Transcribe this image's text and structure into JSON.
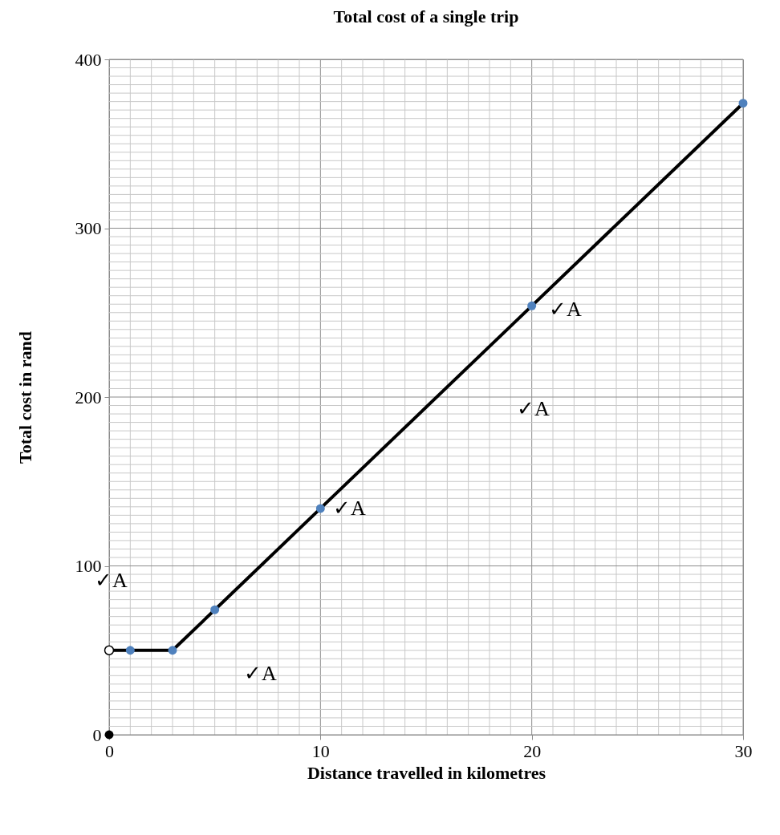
{
  "chart_data": {
    "type": "line",
    "title": "Total cost of  a single trip",
    "xlabel": "Distance travelled in kilometres",
    "ylabel": "Total cost in rand",
    "xlim": [
      0,
      30
    ],
    "ylim": [
      0,
      400
    ],
    "xticks": [
      0,
      {
        "value": 1,
        "label": null
      },
      {
        "value": 2,
        "label": null
      },
      {
        "value": 3,
        "label": null
      },
      {
        "value": 4,
        "label": null
      },
      {
        "value": 5,
        "label": null
      },
      {
        "value": 6,
        "label": null
      },
      {
        "value": 7,
        "label": null
      },
      {
        "value": 8,
        "label": null
      },
      {
        "value": 9,
        "label": null
      },
      10,
      {
        "value": 11,
        "label": null
      },
      {
        "value": 12,
        "label": null
      },
      {
        "value": 13,
        "label": null
      },
      {
        "value": 14,
        "label": null
      },
      {
        "value": 15,
        "label": null
      },
      {
        "value": 16,
        "label": null
      },
      {
        "value": 17,
        "label": null
      },
      {
        "value": 18,
        "label": null
      },
      {
        "value": 19,
        "label": null
      },
      20,
      {
        "value": 21,
        "label": null
      },
      {
        "value": 22,
        "label": null
      },
      {
        "value": 23,
        "label": null
      },
      {
        "value": 24,
        "label": null
      },
      {
        "value": 25,
        "label": null
      },
      {
        "value": 26,
        "label": null
      },
      {
        "value": 27,
        "label": null
      },
      {
        "value": 28,
        "label": null
      },
      {
        "value": 29,
        "label": null
      },
      30
    ],
    "yticks": [
      0,
      {
        "value": 5,
        "label": null
      },
      {
        "value": 10,
        "label": null
      },
      {
        "value": 15,
        "label": null
      },
      {
        "value": 20,
        "label": null
      },
      {
        "value": 25,
        "label": null
      },
      {
        "value": 30,
        "label": null
      },
      {
        "value": 35,
        "label": null
      },
      {
        "value": 40,
        "label": null
      },
      {
        "value": 45,
        "label": null
      },
      {
        "value": 50,
        "label": null
      },
      {
        "value": 55,
        "label": null
      },
      {
        "value": 60,
        "label": null
      },
      {
        "value": 65,
        "label": null
      },
      {
        "value": 70,
        "label": null
      },
      {
        "value": 75,
        "label": null
      },
      {
        "value": 80,
        "label": null
      },
      {
        "value": 85,
        "label": null
      },
      {
        "value": 90,
        "label": null
      },
      {
        "value": 95,
        "label": null
      },
      100,
      {
        "value": 105,
        "label": null
      },
      {
        "value": 110,
        "label": null
      },
      {
        "value": 115,
        "label": null
      },
      {
        "value": 120,
        "label": null
      },
      {
        "value": 125,
        "label": null
      },
      {
        "value": 130,
        "label": null
      },
      {
        "value": 135,
        "label": null
      },
      {
        "value": 140,
        "label": null
      },
      {
        "value": 145,
        "label": null
      },
      {
        "value": 150,
        "label": null
      },
      {
        "value": 155,
        "label": null
      },
      {
        "value": 160,
        "label": null
      },
      {
        "value": 165,
        "label": null
      },
      {
        "value": 170,
        "label": null
      },
      {
        "value": 175,
        "label": null
      },
      {
        "value": 180,
        "label": null
      },
      {
        "value": 185,
        "label": null
      },
      {
        "value": 190,
        "label": null
      },
      {
        "value": 195,
        "label": null
      },
      200,
      {
        "value": 205,
        "label": null
      },
      {
        "value": 210,
        "label": null
      },
      {
        "value": 215,
        "label": null
      },
      {
        "value": 220,
        "label": null
      },
      {
        "value": 225,
        "label": null
      },
      {
        "value": 230,
        "label": null
      },
      {
        "value": 235,
        "label": null
      },
      {
        "value": 240,
        "label": null
      },
      {
        "value": 245,
        "label": null
      },
      {
        "value": 250,
        "label": null
      },
      {
        "value": 255,
        "label": null
      },
      {
        "value": 260,
        "label": null
      },
      {
        "value": 265,
        "label": null
      },
      {
        "value": 270,
        "label": null
      },
      {
        "value": 275,
        "label": null
      },
      {
        "value": 280,
        "label": null
      },
      {
        "value": 285,
        "label": null
      },
      {
        "value": 290,
        "label": null
      },
      {
        "value": 295,
        "label": null
      },
      300,
      {
        "value": 305,
        "label": null
      },
      {
        "value": 310,
        "label": null
      },
      {
        "value": 315,
        "label": null
      },
      {
        "value": 320,
        "label": null
      },
      {
        "value": 325,
        "label": null
      },
      {
        "value": 330,
        "label": null
      },
      {
        "value": 335,
        "label": null
      },
      {
        "value": 340,
        "label": null
      },
      {
        "value": 345,
        "label": null
      },
      {
        "value": 350,
        "label": null
      },
      {
        "value": 355,
        "label": null
      },
      {
        "value": 360,
        "label": null
      },
      {
        "value": 365,
        "label": null
      },
      {
        "value": 370,
        "label": null
      },
      {
        "value": 375,
        "label": null
      },
      {
        "value": 380,
        "label": null
      },
      {
        "value": 385,
        "label": null
      },
      {
        "value": 390,
        "label": null
      },
      {
        "value": 395,
        "label": null
      },
      400
    ],
    "grid": true,
    "series": [
      {
        "type": "line",
        "color": "#000000",
        "marker": "none",
        "x": [
          0,
          1,
          3,
          5,
          10,
          20,
          30
        ],
        "values": [
          50,
          50,
          50,
          74,
          134,
          254,
          374
        ]
      },
      {
        "type": "scatter",
        "color": "#4f81bd",
        "marker": "circle",
        "x": [
          1,
          3,
          5,
          10,
          20,
          30
        ],
        "values": [
          50,
          50,
          74,
          134,
          254,
          374
        ]
      },
      {
        "type": "scatter",
        "color": "#ffffff",
        "marker": "circle",
        "x": [
          0
        ],
        "values": [
          50
        ]
      },
      {
        "type": "scatter",
        "color": "#000000",
        "marker": "circle",
        "x": [
          0
        ],
        "values": [
          0
        ]
      }
    ],
    "annotations": [
      "✓A",
      "✓A",
      "✓A",
      "✓A",
      "✓A"
    ]
  }
}
